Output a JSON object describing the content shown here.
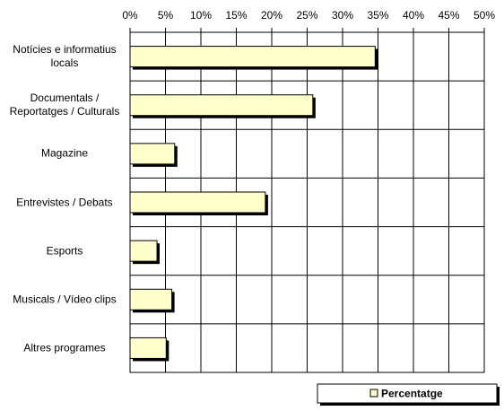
{
  "chart_data": {
    "type": "hbar",
    "categories": [
      "Notícies e informatius\nlocals",
      "Documentals /\nReportatges / Culturals",
      "Magazine",
      "Entrevistes / Debats",
      "Esports",
      "Musicals / Vídeo clips",
      "Altres programes"
    ],
    "series": [
      {
        "name": "Percentatge",
        "color": "#ffffcc",
        "values": [
          34.6,
          25.8,
          6.3,
          19.1,
          3.8,
          5.9,
          5.1
        ]
      }
    ],
    "xlim": [
      0,
      50
    ],
    "xticks": [
      {
        "value": 0,
        "label": "0%"
      },
      {
        "value": 5,
        "label": "5%"
      },
      {
        "value": 10,
        "label": "10%"
      },
      {
        "value": 15,
        "label": "15%"
      },
      {
        "value": 20,
        "label": "20%"
      },
      {
        "value": 25,
        "label": "25%"
      },
      {
        "value": 30,
        "label": "30%"
      },
      {
        "value": 35,
        "label": "35%"
      },
      {
        "value": 40,
        "label": "40%"
      },
      {
        "value": 45,
        "label": "45%"
      },
      {
        "value": 50,
        "label": "50%"
      }
    ],
    "grid": true,
    "legend": "bottom-right"
  }
}
